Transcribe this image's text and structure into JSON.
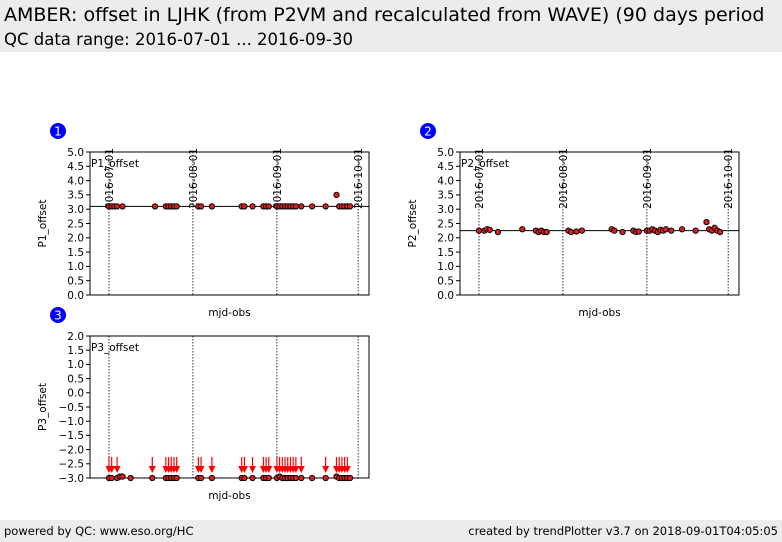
{
  "header": {
    "title": "AMBER: offset in LJHK (from P2VM and recalculated from WAVE) (90 days period",
    "subtitle": "QC data range: 2016-07-01 ... 2016-09-30"
  },
  "footer": {
    "left": "powered by QC: www.eso.org/HC",
    "right": "created by trendPlotter v3.7 on 2018-09-01T04:05:05"
  },
  "colors": {
    "marker_fill": "#d62020",
    "marker_edge": "#000000",
    "arrow": "#ff0000",
    "badge": "#0000ff",
    "header_bg": "#ececec"
  },
  "chart_data": [
    {
      "type": "scatter",
      "panel_number": "1",
      "series_label": "P1_offset",
      "ylabel": "P1_offset",
      "xlabel": "mjd-obs",
      "ylim": [
        0.0,
        5.0
      ],
      "yticks": [
        "0.0",
        "0.5",
        "1.0",
        "1.5",
        "2.0",
        "2.5",
        "3.0",
        "3.5",
        "4.0",
        "4.5",
        "5.0"
      ],
      "xlim": [
        "2016-06-24",
        "2016-10-05"
      ],
      "date_ticks": [
        "2016-07-01",
        "2016-08-01",
        "2016-09-01",
        "2016-10-01"
      ],
      "reference_line": 3.1,
      "x": [
        "2016-07-01",
        "2016-07-02",
        "2016-07-03",
        "2016-07-04",
        "2016-07-06",
        "2016-07-18",
        "2016-07-22",
        "2016-07-23",
        "2016-07-24",
        "2016-07-25",
        "2016-07-26",
        "2016-08-03",
        "2016-08-04",
        "2016-08-08",
        "2016-08-19",
        "2016-08-20",
        "2016-08-23",
        "2016-08-27",
        "2016-08-28",
        "2016-08-29",
        "2016-09-01",
        "2016-09-02",
        "2016-09-03",
        "2016-09-04",
        "2016-09-05",
        "2016-09-06",
        "2016-09-07",
        "2016-09-08",
        "2016-09-10",
        "2016-09-14",
        "2016-09-19",
        "2016-09-23",
        "2016-09-24",
        "2016-09-25",
        "2016-09-26",
        "2016-09-27",
        "2016-09-28"
      ],
      "y": [
        3.1,
        3.1,
        3.1,
        3.1,
        3.1,
        3.1,
        3.1,
        3.1,
        3.1,
        3.1,
        3.1,
        3.1,
        3.1,
        3.1,
        3.1,
        3.1,
        3.1,
        3.1,
        3.1,
        3.1,
        3.1,
        3.1,
        3.1,
        3.1,
        3.1,
        3.1,
        3.1,
        3.1,
        3.1,
        3.1,
        3.1,
        3.5,
        3.1,
        3.1,
        3.1,
        3.1,
        3.1
      ]
    },
    {
      "type": "scatter",
      "panel_number": "2",
      "series_label": "P2_offset",
      "ylabel": "P2_offset",
      "xlabel": "mjd-obs",
      "ylim": [
        0.0,
        5.0
      ],
      "yticks": [
        "0.0",
        "0.5",
        "1.0",
        "1.5",
        "2.0",
        "2.5",
        "3.0",
        "3.5",
        "4.0",
        "4.5",
        "5.0"
      ],
      "xlim": [
        "2016-06-24",
        "2016-10-05"
      ],
      "date_ticks": [
        "2016-07-01",
        "2016-08-01",
        "2016-09-01",
        "2016-10-01"
      ],
      "reference_line": 2.25,
      "x": [
        "2016-07-01",
        "2016-07-03",
        "2016-07-04",
        "2016-07-05",
        "2016-07-08",
        "2016-07-17",
        "2016-07-22",
        "2016-07-23",
        "2016-07-24",
        "2016-07-25",
        "2016-07-26",
        "2016-08-03",
        "2016-08-04",
        "2016-08-06",
        "2016-08-08",
        "2016-08-19",
        "2016-08-20",
        "2016-08-23",
        "2016-08-27",
        "2016-08-28",
        "2016-08-29",
        "2016-09-01",
        "2016-09-02",
        "2016-09-03",
        "2016-09-04",
        "2016-09-05",
        "2016-09-06",
        "2016-09-07",
        "2016-09-08",
        "2016-09-10",
        "2016-09-14",
        "2016-09-19",
        "2016-09-23",
        "2016-09-24",
        "2016-09-25",
        "2016-09-26",
        "2016-09-27",
        "2016-09-28"
      ],
      "y": [
        2.25,
        2.25,
        2.3,
        2.28,
        2.2,
        2.3,
        2.25,
        2.2,
        2.25,
        2.2,
        2.2,
        2.25,
        2.2,
        2.22,
        2.25,
        2.3,
        2.25,
        2.2,
        2.25,
        2.2,
        2.22,
        2.25,
        2.25,
        2.3,
        2.25,
        2.2,
        2.28,
        2.25,
        2.3,
        2.25,
        2.3,
        2.25,
        2.55,
        2.3,
        2.25,
        2.35,
        2.25,
        2.2
      ]
    },
    {
      "type": "scatter",
      "panel_number": "3",
      "series_label": "P3_offset",
      "ylabel": "P3_offset",
      "xlabel": "mjd-obs",
      "ylim": [
        -3.0,
        2.0
      ],
      "yticks": [
        "−3.0",
        "−2.5",
        "−2.0",
        "−1.5",
        "−1.0",
        "−0.5",
        "0.0",
        "0.5",
        "1.0",
        "1.5",
        "2.0"
      ],
      "xlim": [
        "2016-06-24",
        "2016-10-05"
      ],
      "date_ticks": [
        "2016-07-01",
        "2016-08-01",
        "2016-09-01",
        "2016-10-01"
      ],
      "x": [
        "2016-07-01",
        "2016-07-02",
        "2016-07-04",
        "2016-07-05",
        "2016-07-06",
        "2016-07-09",
        "2016-07-17",
        "2016-07-22",
        "2016-07-23",
        "2016-07-24",
        "2016-07-25",
        "2016-07-26",
        "2016-08-03",
        "2016-08-04",
        "2016-08-08",
        "2016-08-19",
        "2016-08-20",
        "2016-08-23",
        "2016-08-27",
        "2016-08-28",
        "2016-08-29",
        "2016-09-01",
        "2016-09-02",
        "2016-09-03",
        "2016-09-04",
        "2016-09-05",
        "2016-09-06",
        "2016-09-07",
        "2016-09-08",
        "2016-09-10",
        "2016-09-14",
        "2016-09-19",
        "2016-09-23",
        "2016-09-24",
        "2016-09-25",
        "2016-09-26",
        "2016-09-27",
        "2016-09-28"
      ],
      "y": [
        -3.0,
        -3.0,
        -3.0,
        -2.95,
        -2.95,
        -3.0,
        -3.0,
        -3.0,
        -3.0,
        -3.0,
        -3.0,
        -3.0,
        -3.0,
        -3.0,
        -3.0,
        -3.0,
        -3.0,
        -3.0,
        -3.0,
        -3.0,
        -3.0,
        -3.0,
        -2.95,
        -3.0,
        -3.0,
        -3.0,
        -3.0,
        -3.0,
        -3.0,
        -3.0,
        -3.0,
        -3.0,
        -2.95,
        -3.0,
        -3.0,
        -3.0,
        -3.0,
        -3.0
      ],
      "out_of_range_below": [
        "2016-07-01",
        "2016-07-02",
        "2016-07-04",
        "2016-07-17",
        "2016-07-22",
        "2016-07-23",
        "2016-07-24",
        "2016-07-25",
        "2016-07-26",
        "2016-08-03",
        "2016-08-04",
        "2016-08-08",
        "2016-08-19",
        "2016-08-20",
        "2016-08-23",
        "2016-08-27",
        "2016-08-28",
        "2016-08-29",
        "2016-09-01",
        "2016-09-02",
        "2016-09-03",
        "2016-09-04",
        "2016-09-05",
        "2016-09-06",
        "2016-09-07",
        "2016-09-08",
        "2016-09-10",
        "2016-09-19",
        "2016-09-23",
        "2016-09-24",
        "2016-09-25",
        "2016-09-26",
        "2016-09-27"
      ]
    }
  ]
}
